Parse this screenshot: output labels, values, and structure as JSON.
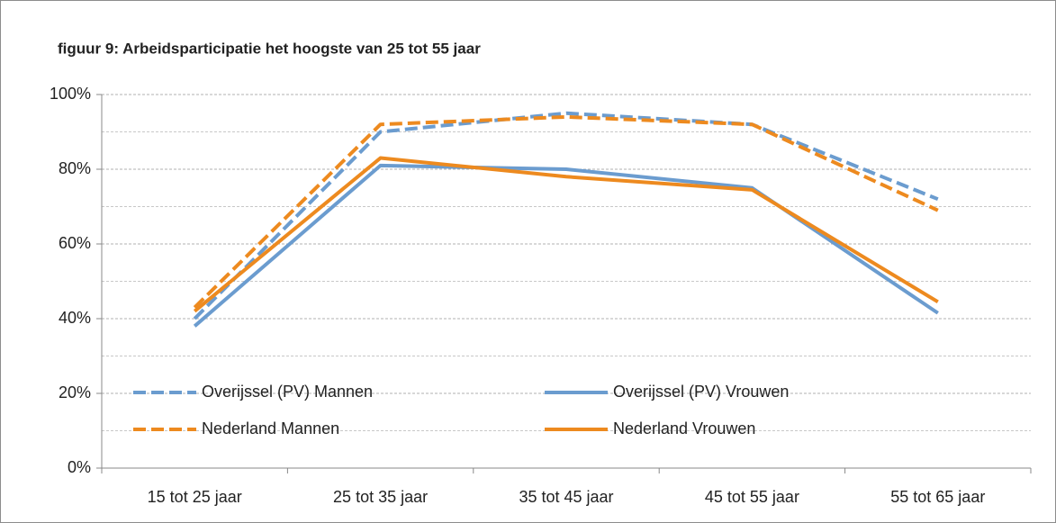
{
  "chart_data": {
    "type": "line",
    "title": "figuur 9: Arbeidsparticipatie het hoogste van 25 tot 55 jaar",
    "categories": [
      "15 tot 25 jaar",
      "25 tot 35 jaar",
      "35 tot 45 jaar",
      "45 tot 55 jaar",
      "55 tot 65 jaar"
    ],
    "series": [
      {
        "name": "Overijssel (PV) Mannen",
        "color": "#6b9ccf",
        "dashed": true,
        "values": [
          40,
          90,
          95,
          92,
          72
        ]
      },
      {
        "name": "Overijssel (PV) Vrouwen",
        "color": "#6b9ccf",
        "dashed": false,
        "values": [
          38,
          81,
          80,
          75,
          41.5
        ]
      },
      {
        "name": "Nederland Mannen",
        "color": "#ed8a1f",
        "dashed": true,
        "values": [
          43,
          92,
          94,
          92,
          69
        ]
      },
      {
        "name": "Nederland Vrouwen",
        "color": "#ed8a1f",
        "dashed": false,
        "values": [
          42,
          83,
          78,
          74.5,
          44.5
        ]
      }
    ],
    "ylim": [
      0,
      100
    ],
    "yticks": [
      {
        "value": 0,
        "label": "0%"
      },
      {
        "value": 20,
        "label": "20%"
      },
      {
        "value": 40,
        "label": "40%"
      },
      {
        "value": 60,
        "label": "60%"
      },
      {
        "value": 80,
        "label": "80%"
      },
      {
        "value": 100,
        "label": "100%"
      }
    ],
    "y_minor_gridlines": [
      10,
      30,
      50,
      70,
      90
    ],
    "grid": true
  }
}
